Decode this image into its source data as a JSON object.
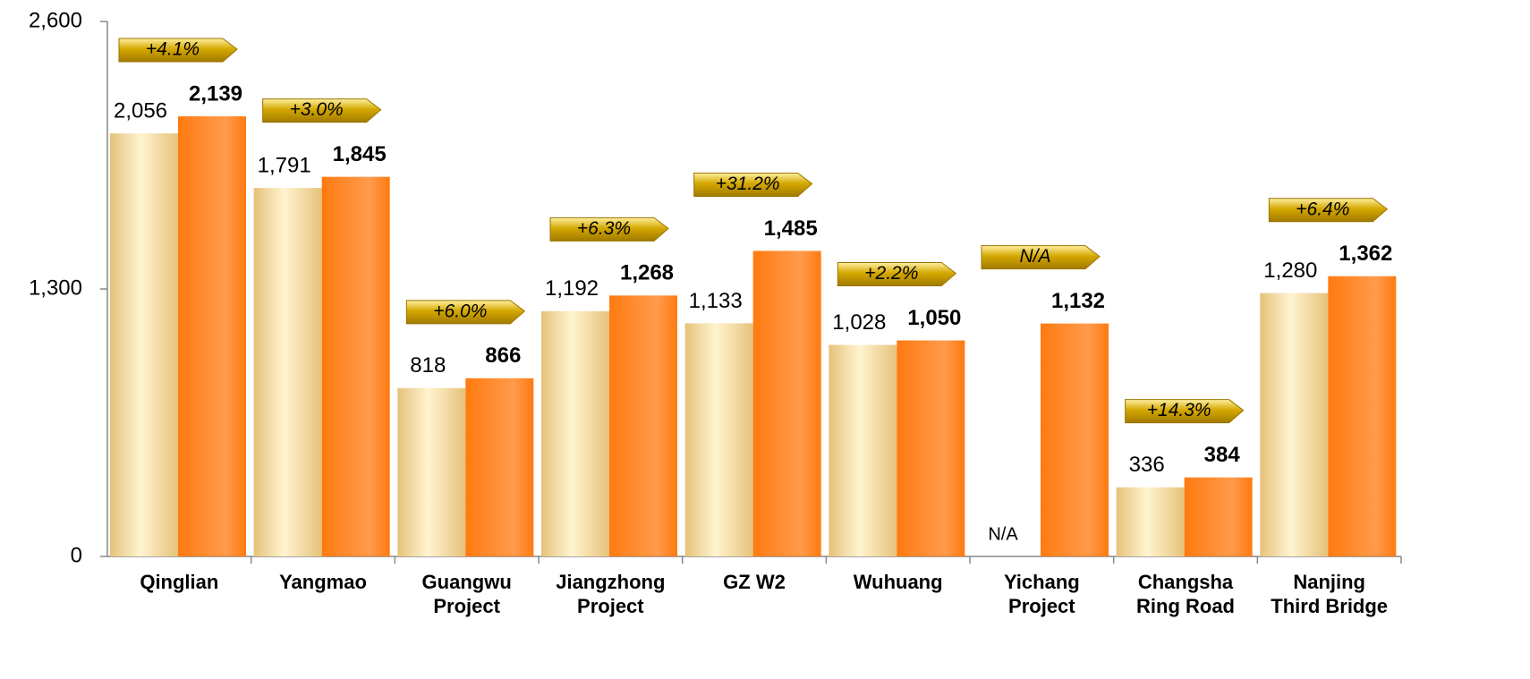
{
  "chart_data": {
    "type": "bar",
    "categories": [
      "Qinglian",
      "Yangmao",
      "Guangwu\nProject",
      "Jiangzhong\nProject",
      "GZ W2",
      "Wuhuang",
      "Yichang\nProject",
      "Changsha\nRing Road",
      "Nanjing\nThird Bridge"
    ],
    "series": [
      {
        "color": "#e6c27a",
        "values": [
          2056,
          1791,
          818,
          1192,
          1133,
          1028,
          null,
          336,
          1280
        ],
        "value_labels": [
          "2,056",
          "1,791",
          "818",
          "1,192",
          "1,133",
          "1,028",
          "N/A",
          "336",
          "1,280"
        ]
      },
      {
        "color": "#ff7a10",
        "values": [
          2139,
          1845,
          866,
          1268,
          1485,
          1050,
          1132,
          384,
          1362
        ],
        "value_labels": [
          "2,139",
          "1,845",
          "866",
          "1,268",
          "1,485",
          "1,050",
          "1,132",
          "384",
          "1,362"
        ]
      }
    ],
    "annotations": [
      "+4.1%",
      "+3.0%",
      "+6.0%",
      "+6.3%",
      "+31.2%",
      "+2.2%",
      "N/A",
      "+14.3%",
      "+6.4%"
    ],
    "annotation_color": "#d4a800",
    "ylim": [
      0,
      2600
    ],
    "yticks": [
      0,
      {
        "value": 1300,
        "label": "1,300"
      },
      {
        "value": 2600,
        "label": "2,600"
      }
    ]
  }
}
